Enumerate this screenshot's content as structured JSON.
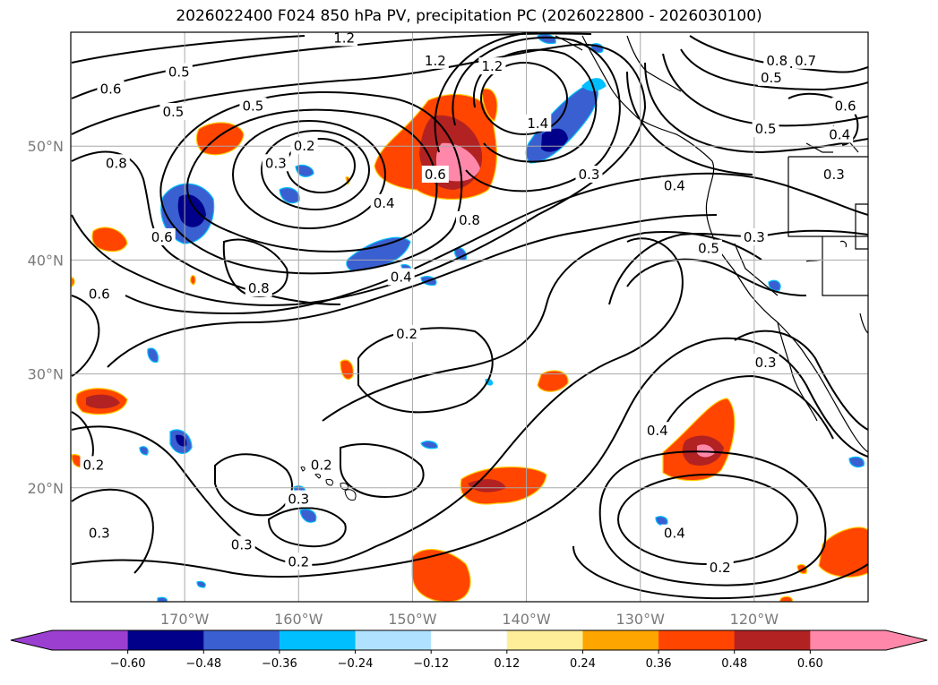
{
  "title": "2026022400 F024 850 hPa PV, precipitation PC (2026022800 - 2026030100)",
  "map": {
    "lon_range": [
      -180,
      -110
    ],
    "lat_range": [
      10,
      60
    ],
    "lon_ticks": [
      {
        "value": -170,
        "label": "170°W"
      },
      {
        "value": -160,
        "label": "160°W"
      },
      {
        "value": -150,
        "label": "150°W"
      },
      {
        "value": -140,
        "label": "140°W"
      },
      {
        "value": -130,
        "label": "130°W"
      },
      {
        "value": -120,
        "label": "120°W"
      }
    ],
    "lat_ticks": [
      {
        "value": 20,
        "label": "20°N"
      },
      {
        "value": 30,
        "label": "30°N"
      },
      {
        "value": 40,
        "label": "40°N"
      },
      {
        "value": 50,
        "label": "50°N"
      }
    ],
    "grid": true,
    "contour_labels": [
      {
        "lon": -176.5,
        "lat": 55,
        "text": "0.6"
      },
      {
        "lon": -176,
        "lat": 48.5,
        "text": "0.8"
      },
      {
        "lon": -171,
        "lat": 53,
        "text": "0.5"
      },
      {
        "lon": -164,
        "lat": 53.5,
        "text": "0.5"
      },
      {
        "lon": -159.5,
        "lat": 50,
        "text": "0.2"
      },
      {
        "lon": -162,
        "lat": 48.5,
        "text": "0.3"
      },
      {
        "lon": -152.5,
        "lat": 45,
        "text": "0.4"
      },
      {
        "lon": -148,
        "lat": 47.5,
        "text": "0.6"
      },
      {
        "lon": -145,
        "lat": 43.5,
        "text": "0.8"
      },
      {
        "lon": -143,
        "lat": 57,
        "text": "1.2"
      },
      {
        "lon": -139,
        "lat": 52,
        "text": "1.4"
      },
      {
        "lon": -148,
        "lat": 57.5,
        "text": "1.2"
      },
      {
        "lon": -163.5,
        "lat": 37.5,
        "text": "0.8"
      },
      {
        "lon": -151,
        "lat": 38.5,
        "text": "0.4"
      },
      {
        "lon": -150.5,
        "lat": 33.5,
        "text": "0.2"
      },
      {
        "lon": -172,
        "lat": 42,
        "text": "0.6"
      },
      {
        "lon": -177.5,
        "lat": 37,
        "text": "0.6"
      },
      {
        "lon": -178,
        "lat": 22,
        "text": "0.2"
      },
      {
        "lon": -177.5,
        "lat": 16,
        "text": "0.3"
      },
      {
        "lon": -158,
        "lat": 22,
        "text": "0.2"
      },
      {
        "lon": -160,
        "lat": 19,
        "text": "0.3"
      },
      {
        "lon": -165,
        "lat": 15,
        "text": "0.3"
      },
      {
        "lon": -160,
        "lat": 13.5,
        "text": "0.2"
      },
      {
        "lon": -134.5,
        "lat": 47.5,
        "text": "0.3"
      },
      {
        "lon": -127,
        "lat": 46.5,
        "text": "0.4"
      },
      {
        "lon": -124,
        "lat": 41,
        "text": "0.5"
      },
      {
        "lon": -120,
        "lat": 42,
        "text": "0.3"
      },
      {
        "lon": -119,
        "lat": 31,
        "text": "0.3"
      },
      {
        "lon": -128.5,
        "lat": 25,
        "text": "0.4"
      },
      {
        "lon": -127,
        "lat": 16,
        "text": "0.4"
      },
      {
        "lon": -123,
        "lat": 13,
        "text": "0.2"
      },
      {
        "lon": -118,
        "lat": 57.5,
        "text": "0.8"
      },
      {
        "lon": -115.5,
        "lat": 57.5,
        "text": "0.7"
      },
      {
        "lon": -118.5,
        "lat": 56,
        "text": "0.5"
      },
      {
        "lon": -112.5,
        "lat": 51,
        "text": "0.4"
      },
      {
        "lon": -113,
        "lat": 47.5,
        "text": "0.3"
      },
      {
        "lon": -119,
        "lat": 51.5,
        "text": "0.5"
      },
      {
        "lon": -170.5,
        "lat": 56.5,
        "text": "0.5"
      },
      {
        "lon": -156,
        "lat": 59.5,
        "text": "1.2"
      },
      {
        "lon": -112,
        "lat": 53.5,
        "text": "0.6"
      }
    ]
  },
  "colorbar": {
    "ticks": [
      "−0.60",
      "−0.48",
      "−0.36",
      "−0.24",
      "−0.12",
      "0.12",
      "0.24",
      "0.36",
      "0.48",
      "0.60"
    ],
    "colors": {
      "below": "#9b3fd1",
      "bins": [
        "#00008b",
        "#3a5fd0",
        "#00bfff",
        "#b0e2ff",
        "#ffffff",
        "#ffee99",
        "#ffa500",
        "#ff4500",
        "#b22222",
        "#ff88aa"
      ],
      "above": "#ff88aa",
      "lowest": "#9b3fd1"
    }
  }
}
